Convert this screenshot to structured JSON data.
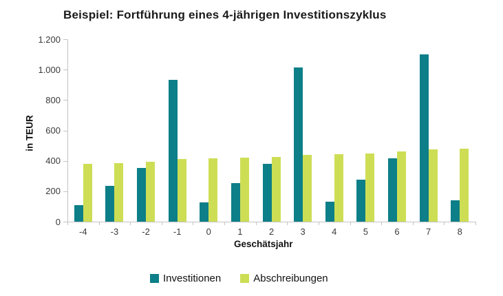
{
  "title": "Beispiel: Fortführung eines 4-jährigen Investitionszyklus",
  "chart_data": {
    "type": "bar",
    "title": "Beispiel: Fortführung eines 4-jährigen Investitionszyklus",
    "xlabel": "Geschätsjahr",
    "ylabel": "in TEUR",
    "categories": [
      "-4",
      "-3",
      "-2",
      "-1",
      "0",
      "1",
      "2",
      "3",
      "4",
      "5",
      "6",
      "7",
      "8"
    ],
    "series": [
      {
        "name": "Investitionen",
        "color": "#0d7f88",
        "values": [
          110,
          235,
          355,
          935,
          125,
          255,
          380,
          1015,
          130,
          275,
          415,
          1100,
          140
        ]
      },
      {
        "name": "Abschreibungen",
        "color": "#cdde55",
        "values": [
          380,
          385,
          395,
          410,
          415,
          420,
          425,
          440,
          445,
          450,
          460,
          475,
          480
        ]
      }
    ],
    "ylim": [
      0,
      1200
    ],
    "ytick_step": 200,
    "ytick_labels": [
      "0",
      "200",
      "400",
      "600",
      "800",
      "1.000",
      "1.200"
    ],
    "grid": false,
    "legend_position": "bottom"
  },
  "colors": {
    "axis": "#c3c3c3",
    "tick_text": "#3a3a3a",
    "title_text": "#1a1a1a"
  }
}
